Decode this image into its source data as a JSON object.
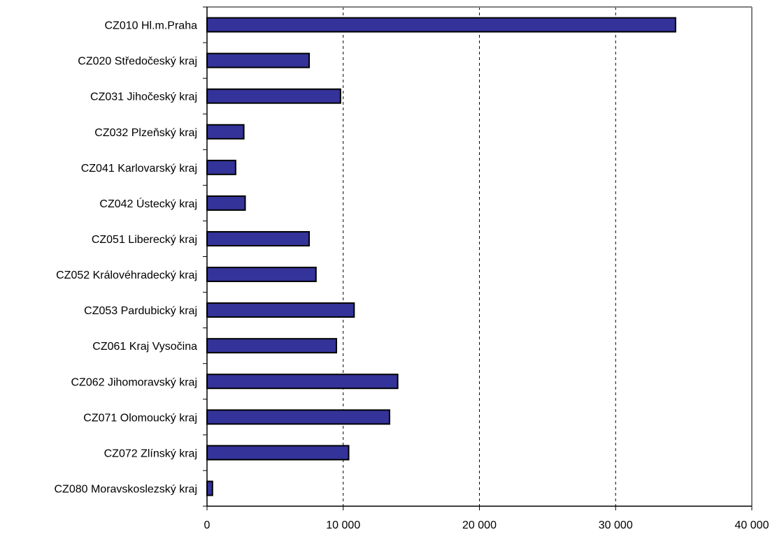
{
  "chart_data": {
    "type": "bar",
    "orientation": "horizontal",
    "categories": [
      "CZ010 Hl.m.Praha",
      "CZ020 Středočeský kraj",
      "CZ031 Jihočeský kraj",
      "CZ032 Plzeňský kraj",
      "CZ041 Karlovarský kraj",
      "CZ042 Ústecký kraj",
      "CZ051 Liberecký kraj",
      "CZ052 Královéhradecký kraj",
      "CZ053 Pardubický kraj",
      "CZ061 Kraj Vysočina",
      "CZ062 Jihomoravský kraj",
      "CZ071 Olomoucký kraj",
      "CZ072 Zlínský kraj",
      "CZ080 Moravskoslezský kraj"
    ],
    "values": [
      34400,
      7500,
      9800,
      2700,
      2100,
      2800,
      7500,
      8000,
      10800,
      9500,
      14000,
      13400,
      10400,
      400
    ],
    "title": "",
    "xlabel": "",
    "ylabel": "",
    "xlim": [
      0,
      40000
    ],
    "xticks": [
      0,
      10000,
      20000,
      30000,
      40000
    ],
    "xtick_labels": [
      "0",
      "10 000",
      "20 000",
      "30 000",
      "40 000"
    ],
    "grid": "vertical dashed",
    "legend": "none",
    "colors": {
      "bar_fill": "#333399",
      "bar_stroke": "#000000",
      "gridline": "#000000",
      "frame": "#808080"
    }
  }
}
